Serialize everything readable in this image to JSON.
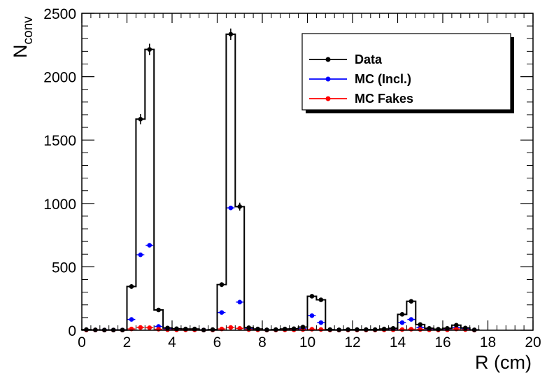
{
  "chart_data": {
    "type": "histogram",
    "xlabel": "R (cm)",
    "ylabel_main": "N",
    "ylabel_sub": "conv",
    "xlim": [
      0,
      20
    ],
    "ylim": [
      0,
      2500
    ],
    "xticks": [
      0,
      2,
      4,
      6,
      8,
      10,
      12,
      14,
      16,
      18,
      20
    ],
    "yticks": [
      0,
      500,
      1000,
      1500,
      2000,
      2500
    ],
    "bin_width": 0.4,
    "legend_position": "top-right",
    "series": [
      {
        "name": "Data",
        "color": "#000000",
        "style": "histogram-with-markers",
        "values": [
          5,
          3,
          2,
          2,
          2,
          345,
          1665,
          2215,
          160,
          18,
          12,
          10,
          10,
          2,
          5,
          360,
          2335,
          975,
          20,
          10,
          3,
          5,
          10,
          12,
          25,
          268,
          240,
          5,
          3,
          5,
          5,
          5,
          5,
          10,
          15,
          125,
          228,
          45,
          15,
          8,
          15,
          40,
          18,
          3
        ],
        "errors": [
          2,
          2,
          1,
          1,
          1,
          18,
          40,
          45,
          12,
          4,
          3,
          3,
          3,
          1,
          2,
          19,
          45,
          31,
          4,
          3,
          2,
          2,
          3,
          3,
          5,
          16,
          15,
          2,
          2,
          2,
          2,
          2,
          2,
          3,
          4,
          11,
          15,
          7,
          4,
          3,
          4,
          6,
          4,
          2
        ]
      },
      {
        "name": "MC (Incl.)",
        "color": "#0000ff",
        "style": "markers",
        "values": [
          3,
          2,
          2,
          2,
          2,
          85,
          595,
          670,
          30,
          10,
          6,
          5,
          4,
          2,
          3,
          140,
          965,
          222,
          10,
          5,
          2,
          3,
          5,
          6,
          12,
          115,
          60,
          3,
          2,
          3,
          3,
          3,
          3,
          5,
          8,
          60,
          85,
          20,
          8,
          5,
          8,
          20,
          10,
          2
        ]
      },
      {
        "name": "MC Fakes",
        "color": "#ff0000",
        "style": "markers",
        "values": [
          2,
          2,
          1,
          1,
          1,
          10,
          22,
          20,
          8,
          4,
          3,
          3,
          3,
          1,
          2,
          10,
          22,
          15,
          5,
          3,
          1,
          2,
          3,
          3,
          5,
          8,
          6,
          2,
          1,
          2,
          2,
          2,
          2,
          3,
          3,
          5,
          8,
          6,
          3,
          2,
          3,
          10,
          5,
          1
        ]
      }
    ]
  }
}
